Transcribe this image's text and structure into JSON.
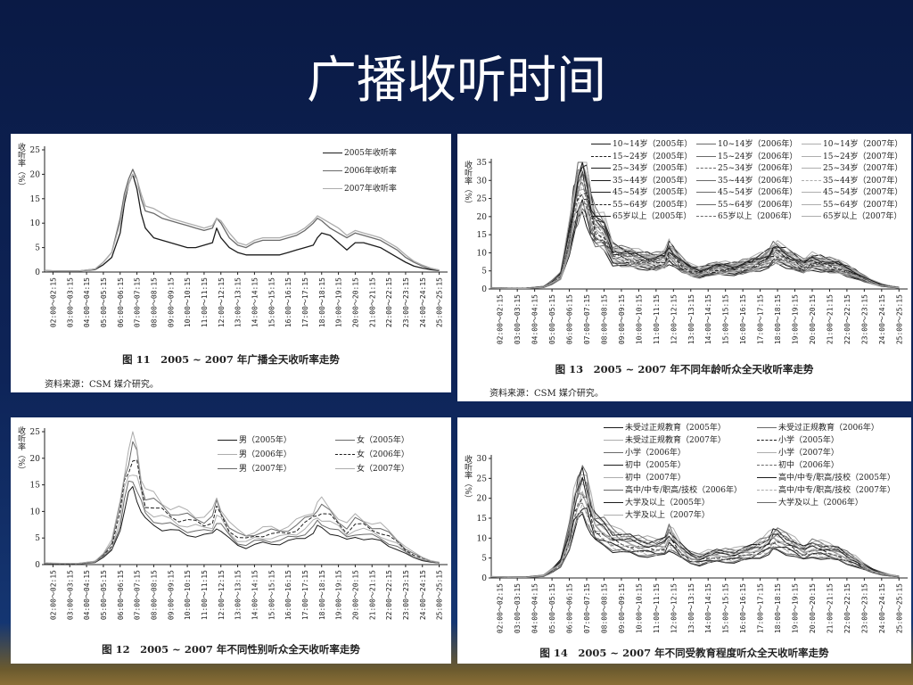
{
  "slide": {
    "title": "广播收听时间"
  },
  "time_labels": [
    "02:00～02:15",
    "03:00～03:15",
    "04:00～04:15",
    "05:00～05:15",
    "06:00～06:15",
    "07:00～07:15",
    "08:00～08:15",
    "09:00～09:15",
    "10:00～10:15",
    "11:00～11:15",
    "12:00～12:15",
    "13:00～13:15",
    "14:00～14:15",
    "15:00～15:15",
    "16:00～16:15",
    "17:00～17:15",
    "18:00～18:15",
    "19:00～19:15",
    "20:00～20:15",
    "21:00～21:15",
    "22:00～22:15",
    "23:00～23:15",
    "24:00～24:15",
    "25:00～25:15"
  ],
  "colors": {
    "dark": "#1c1c1c",
    "mid": "#6a6a6a",
    "light": "#adadad"
  },
  "chart_data": [
    {
      "type": "line",
      "title": "图 11　2005 ~ 2007 年广播全天收听率走势",
      "source": "资料来源：CSM 媒介研究。",
      "ylabel": "收听率（%）",
      "ylim": [
        0,
        25
      ],
      "yticks": [
        0,
        5,
        10,
        15,
        20,
        25
      ],
      "x": [
        "02:00",
        "03:00",
        "04:00",
        "05:00",
        "05:30",
        "06:00",
        "06:30",
        "06:45",
        "07:00",
        "07:15",
        "07:30",
        "07:45",
        "08:00",
        "08:30",
        "09:00",
        "09:30",
        "10:00",
        "10:30",
        "11:00",
        "11:30",
        "12:00",
        "12:15",
        "12:30",
        "13:00",
        "13:30",
        "14:00",
        "14:30",
        "15:00",
        "15:30",
        "16:00",
        "16:30",
        "17:00",
        "17:30",
        "18:00",
        "18:15",
        "18:30",
        "19:00",
        "19:30",
        "20:00",
        "20:30",
        "21:00",
        "21:30",
        "22:00",
        "22:30",
        "23:00",
        "23:30",
        "24:00",
        "24:30",
        "25:00",
        "25:30"
      ],
      "series": [
        {
          "name": "2005年收听率",
          "color": "#1c1c1c",
          "values": [
            0.3,
            0.2,
            0.2,
            0.5,
            1.5,
            3,
            8,
            14,
            18,
            20,
            17,
            12,
            9,
            7,
            6.5,
            6,
            5.5,
            5,
            5,
            5.5,
            6,
            9,
            7,
            5,
            4,
            3.5,
            3.5,
            3.5,
            3.5,
            3.5,
            4,
            4.5,
            5,
            5.5,
            7,
            8,
            7.5,
            6,
            4.5,
            6,
            6,
            5.5,
            5,
            4,
            3,
            2,
            1.2,
            0.8,
            0.5,
            0.3
          ]
        },
        {
          "name": "2006年收听率",
          "color": "#6a6a6a",
          "values": [
            0.3,
            0.2,
            0.2,
            0.6,
            2,
            4,
            11,
            16,
            19,
            21,
            19,
            15,
            12.5,
            12,
            11,
            10.5,
            10,
            9.5,
            9,
            8.5,
            9,
            11,
            10,
            7,
            5.5,
            5,
            6,
            6.5,
            6.5,
            6.5,
            7,
            7.5,
            8.5,
            10,
            11,
            10.5,
            9,
            8,
            7,
            8,
            7.5,
            7,
            6.5,
            5.5,
            4.5,
            3,
            2,
            1.2,
            0.7,
            0.4
          ]
        },
        {
          "name": "2007年收听率",
          "color": "#adadad",
          "values": [
            0.3,
            0.2,
            0.2,
            0.6,
            2,
            4,
            10,
            15,
            18,
            20,
            19,
            16,
            13.5,
            13,
            12,
            11,
            10.5,
            10,
            9.5,
            9,
            9.5,
            11,
            10.5,
            8,
            6,
            5.5,
            6.5,
            7,
            7,
            7,
            7.5,
            8,
            9,
            10.5,
            11.5,
            11,
            10,
            9,
            7.5,
            8.5,
            8,
            7.5,
            7,
            6,
            5,
            3.5,
            2.2,
            1.4,
            0.8,
            0.4
          ]
        }
      ]
    },
    {
      "type": "line",
      "title": "图 13　2005 ~ 2007 年不同年龄听众全天收听率走势",
      "source": "资料来源：CSM 媒介研究。",
      "ylabel": "收听率（%）",
      "ylim": [
        0,
        35
      ],
      "yticks": [
        0,
        5,
        10,
        15,
        20,
        25,
        30,
        35
      ],
      "legend": [
        "10~14岁（2005年）",
        "10~14岁（2006年）",
        "10~14岁（2007年）",
        "15~24岁（2005年）",
        "15~24岁（2006年）",
        "15~24岁（2007年）",
        "25~34岁（2005年）",
        "25~34岁（2006年）",
        "25~34岁（2007年）",
        "35~44岁（2005年）",
        "35~44岁（2006年）",
        "35~44岁（2007年）",
        "45~54岁（2005年）",
        "45~54岁（2006年）",
        "45~54岁（2007年）",
        "55~64岁（2005年）",
        "55~64岁（2006年）",
        "55~64岁（2007年）",
        "65岁以上（2005年）",
        "65岁以上（2006年）",
        "65岁以上（2007年）"
      ]
    },
    {
      "type": "line",
      "title": "图 12　2005 ~ 2007 年不同性别听众全天收听率走势",
      "ylabel": "收听率（%）",
      "ylim": [
        0,
        25
      ],
      "yticks": [
        0,
        5,
        10,
        15,
        20,
        25
      ],
      "legend": [
        "男（2005年）",
        "女（2005年）",
        "男（2006年）",
        "女（2006年）",
        "男（2007年）",
        "女（2007年）"
      ]
    },
    {
      "type": "line",
      "title": "图 14　2005 ~ 2007 年不同受教育程度听众全天收听率走势",
      "ylabel": "收听率（%）",
      "ylim": [
        0,
        30
      ],
      "yticks": [
        0,
        5,
        10,
        15,
        20,
        25,
        30
      ],
      "legend": [
        "未受过正规教育（2005年）",
        "未受过正规教育（2006年）",
        "未受过正规教育（2007年）",
        "小学（2005年）",
        "小学（2006年）",
        "小学（2007年）",
        "初中（2005年）",
        "初中（2006年）",
        "初中（2007年）",
        "高中/中专/职高/技校（2005年）",
        "高中/中专/职高/技校（2006年）",
        "高中/中专/职高/技校（2007年）",
        "大学及以上（2005年）",
        "大学及以上（2006年）",
        "大学及以上（2007年）"
      ]
    }
  ]
}
